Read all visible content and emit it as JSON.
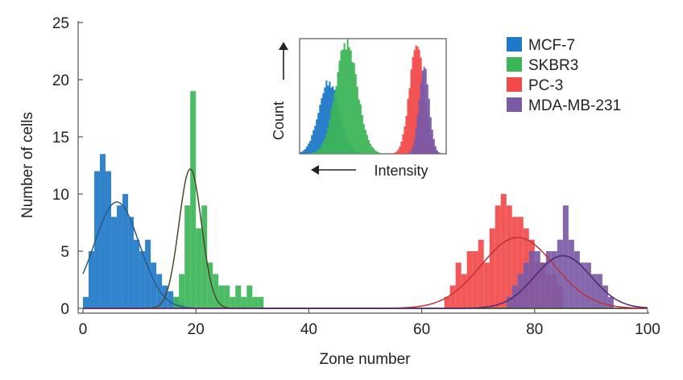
{
  "chart_data": {
    "type": "bar",
    "title": "",
    "xlabel": "Zone number",
    "ylabel": "Number of cells",
    "xlim": [
      0,
      100
    ],
    "ylim": [
      0,
      25
    ],
    "xticks": [
      0,
      20,
      40,
      60,
      80,
      100
    ],
    "yticks": [
      0,
      5,
      10,
      15,
      20,
      25
    ],
    "grid": false,
    "legend_position": "top-right",
    "bin_width": 1,
    "series": [
      {
        "name": "MCF-7",
        "color": "#1f78c8",
        "bins": [
          [
            0,
            1
          ],
          [
            1,
            5
          ],
          [
            2,
            12
          ],
          [
            3,
            13.5
          ],
          [
            4,
            12
          ],
          [
            5,
            8
          ],
          [
            6,
            9
          ],
          [
            7,
            10
          ],
          [
            8,
            8
          ],
          [
            9,
            6
          ],
          [
            10,
            5
          ],
          [
            11,
            6
          ],
          [
            12,
            4
          ],
          [
            13,
            3
          ],
          [
            14,
            2
          ],
          [
            15,
            1.5
          ],
          [
            16,
            1
          ],
          [
            17,
            0.5
          ]
        ],
        "fit": {
          "mean": 6,
          "sd": 4,
          "peak": 9.3,
          "color": "#2a5a8a"
        }
      },
      {
        "name": "SKBR3",
        "color": "#3cb558",
        "bins": [
          [
            16,
            1
          ],
          [
            17,
            3
          ],
          [
            18,
            9
          ],
          [
            19,
            19
          ],
          [
            20,
            7
          ],
          [
            21,
            9
          ],
          [
            22,
            4
          ],
          [
            23,
            3
          ],
          [
            24,
            2
          ],
          [
            25,
            2
          ],
          [
            26,
            1
          ],
          [
            27,
            2
          ],
          [
            28,
            1
          ],
          [
            29,
            2
          ],
          [
            30,
            1
          ],
          [
            31,
            1
          ]
        ],
        "fit": {
          "mean": 19,
          "sd": 2,
          "peak": 12.2,
          "color": "#4a4a2a"
        }
      },
      {
        "name": "PC-3",
        "color": "#f24a4a",
        "bins": [
          [
            64,
            1
          ],
          [
            65,
            2
          ],
          [
            66,
            4
          ],
          [
            67,
            3
          ],
          [
            68,
            5
          ],
          [
            69,
            5
          ],
          [
            70,
            6
          ],
          [
            71,
            4
          ],
          [
            72,
            7
          ],
          [
            73,
            9
          ],
          [
            74,
            10
          ],
          [
            75,
            9
          ],
          [
            76,
            8
          ],
          [
            77,
            8
          ],
          [
            78,
            7
          ],
          [
            79,
            6
          ],
          [
            80,
            4
          ],
          [
            81,
            4
          ],
          [
            82,
            3
          ],
          [
            83,
            3
          ],
          [
            84,
            2
          ]
        ],
        "fit": {
          "mean": 77,
          "sd": 6.5,
          "peak": 6.2,
          "color": "#c0303a"
        }
      },
      {
        "name": "MDA-MB-231",
        "color": "#7a5aa6",
        "bins": [
          [
            75,
            1
          ],
          [
            76,
            2
          ],
          [
            77,
            3
          ],
          [
            78,
            4
          ],
          [
            79,
            5
          ],
          [
            80,
            5
          ],
          [
            81,
            4
          ],
          [
            82,
            5
          ],
          [
            83,
            5
          ],
          [
            84,
            6
          ],
          [
            85,
            9
          ],
          [
            86,
            6
          ],
          [
            87,
            5
          ],
          [
            88,
            4
          ],
          [
            89,
            4
          ],
          [
            90,
            3
          ],
          [
            91,
            3
          ],
          [
            92,
            2
          ],
          [
            93,
            1
          ]
        ],
        "fit": {
          "mean": 85,
          "sd": 5,
          "peak": 4.6,
          "color": "#4a2a6a"
        }
      }
    ],
    "inset": {
      "xlabel": "Intensity",
      "ylabel": "Count",
      "series": [
        {
          "name": "MCF-7",
          "color": "#1f78c8",
          "mean": 0.2,
          "sd": 0.07,
          "peak": 0.62
        },
        {
          "name": "SKBR3",
          "color": "#3cb558",
          "mean": 0.32,
          "sd": 0.075,
          "peak": 0.96
        },
        {
          "name": "PC-3",
          "color": "#f24a4a",
          "mean": 0.8,
          "sd": 0.05,
          "peak": 0.95
        },
        {
          "name": "MDA-MB-231",
          "color": "#7a5aa6",
          "mean": 0.85,
          "sd": 0.035,
          "peak": 0.75
        }
      ]
    }
  }
}
